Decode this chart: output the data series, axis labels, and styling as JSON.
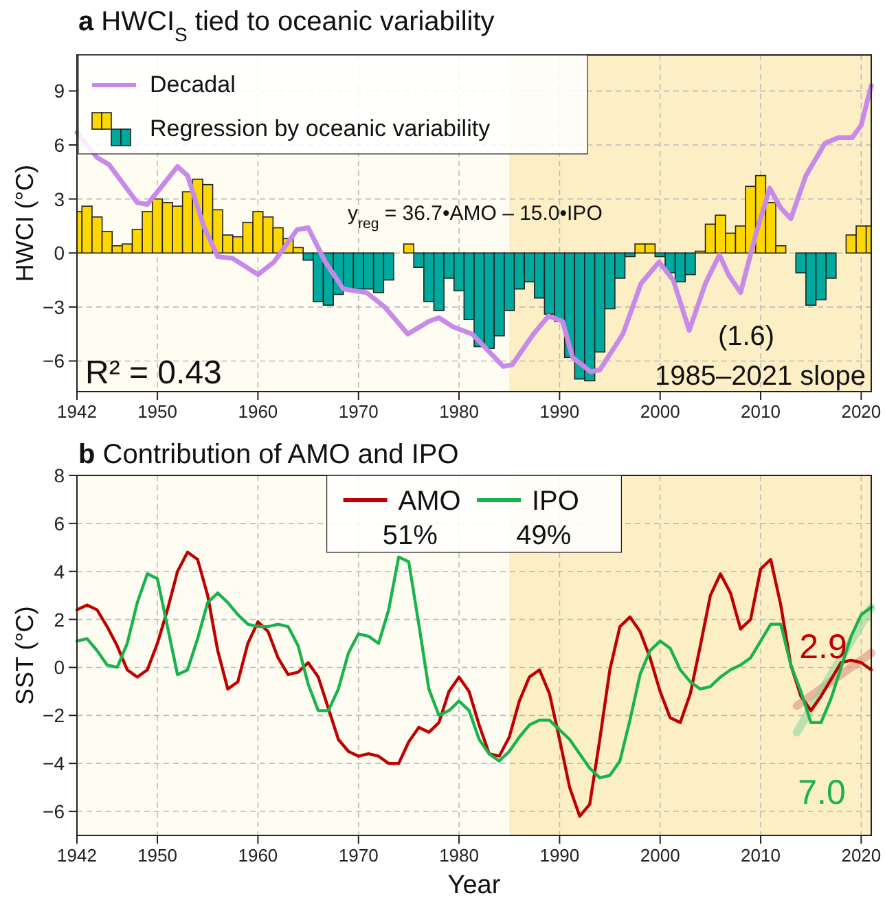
{
  "chart_data": [
    {
      "type": "bar",
      "title": "a HWCI$_{S}$ tied to oceanic variability",
      "ylabel": "HWCI (°C)",
      "x": [
        1942,
        1943,
        1944,
        1945,
        1946,
        1947,
        1948,
        1949,
        1950,
        1951,
        1952,
        1953,
        1954,
        1955,
        1956,
        1957,
        1958,
        1959,
        1960,
        1961,
        1962,
        1963,
        1964,
        1965,
        1966,
        1967,
        1968,
        1969,
        1970,
        1971,
        1972,
        1973,
        1974,
        1975,
        1976,
        1977,
        1978,
        1979,
        1980,
        1981,
        1982,
        1983,
        1984,
        1985,
        1986,
        1987,
        1988,
        1989,
        1990,
        1991,
        1992,
        1993,
        1994,
        1995,
        1996,
        1997,
        1998,
        1999,
        2000,
        2001,
        2002,
        2003,
        2004,
        2005,
        2006,
        2007,
        2008,
        2009,
        2010,
        2011,
        2012,
        2013,
        2014,
        2015,
        2016,
        2017,
        2018,
        2019,
        2020,
        2021
      ],
      "series": [
        {
          "type": "line",
          "name": "Decadal",
          "color": "#c88ae8",
          "x": [
            1942,
            1944,
            1945.2,
            1948,
            1949,
            1952,
            1953,
            1954.6,
            1956,
            1957.5,
            1960,
            1961.6,
            1963.9,
            1965,
            1966.7,
            1968.5,
            1970.8,
            1972.6,
            1974.9,
            1977,
            1978,
            1979.4,
            1981.3,
            1984.4,
            1985.3,
            1987.4,
            1988.9,
            1990.3,
            1991.3,
            1993.1,
            1994,
            1996.3,
            1998.1,
            1999.9,
            2001.3,
            2002.9,
            2004.5,
            2005.9,
            2006.8,
            2008,
            2009.5,
            2010.9,
            2012,
            2013,
            2014.5,
            2016.4,
            2017.7,
            2019.1,
            2020,
            2021
          ],
          "values": [
            6.7,
            5.3,
            4.9,
            2.8,
            2.7,
            4.8,
            4.3,
            1.5,
            -0.2,
            -0.3,
            -1.2,
            -0.5,
            1.3,
            1.4,
            -0.5,
            -2.0,
            -2.2,
            -3.0,
            -4.5,
            -3.8,
            -3.6,
            -4.1,
            -4.5,
            -6.3,
            -6.2,
            -4.5,
            -3.5,
            -3.8,
            -5.8,
            -6.6,
            -6.5,
            -4.5,
            -1.7,
            -0.5,
            -1.5,
            -4.3,
            -1.7,
            -0.1,
            -1.2,
            -2.2,
            1.0,
            3.6,
            2.5,
            1.9,
            4.3,
            6.1,
            6.4,
            6.4,
            7.1,
            9.3
          ]
        },
        {
          "type": "bar",
          "name": "Regression by oceanic variability",
          "values": [
            2.3,
            2.6,
            2.0,
            1.2,
            0.4,
            0.5,
            1.3,
            2.3,
            3.0,
            2.8,
            2.6,
            3.4,
            4.1,
            3.8,
            2.4,
            1.0,
            0.9,
            1.7,
            2.3,
            2.0,
            1.4,
            0.8,
            0.3,
            -0.4,
            -2.7,
            -2.9,
            -2.3,
            -2.0,
            -2.0,
            -2.0,
            -2.2,
            -1.5,
            0.0,
            0.5,
            -0.8,
            -2.7,
            -3.2,
            -1.4,
            -2.1,
            -3.7,
            -5.2,
            -5.3,
            -4.6,
            -3.2,
            -2.0,
            -1.6,
            -2.5,
            -3.4,
            -3.8,
            -5.8,
            -7.0,
            -7.1,
            -5.5,
            -3.1,
            -1.4,
            -0.2,
            0.5,
            0.5,
            -0.2,
            -1.1,
            -1.6,
            -1.2,
            0.1,
            1.6,
            2.1,
            1.1,
            1.5,
            3.7,
            4.3,
            2.8,
            0.4,
            0.0,
            -1.1,
            -2.9,
            -2.6,
            -1.4,
            0.0,
            1.0,
            1.5,
            1.5
          ],
          "colors": [
            "#ffd700",
            "#ffd700",
            "#ffd700",
            "#ffd700",
            "#ffd700",
            "#ffd700",
            "#ffd700",
            "#ffd700",
            "#ffd700",
            "#ffd700",
            "#ffd700",
            "#ffd700",
            "#ffd700",
            "#ffd700",
            "#ffd700",
            "#ffd700",
            "#ffd700",
            "#ffd700",
            "#ffd700",
            "#ffd700",
            "#ffd700",
            "#ffd700",
            "#ffd700",
            "#00a99d",
            "#00a99d",
            "#00a99d",
            "#00a99d",
            "#00a99d",
            "#00a99d",
            "#00a99d",
            "#00a99d",
            "#00a99d",
            "#00a99d",
            "#ffd700",
            "#00a99d",
            "#00a99d",
            "#00a99d",
            "#00a99d",
            "#00a99d",
            "#00a99d",
            "#00a99d",
            "#00a99d",
            "#00a99d",
            "#00a99d",
            "#00a99d",
            "#00a99d",
            "#00a99d",
            "#00a99d",
            "#00a99d",
            "#00a99d",
            "#00a99d",
            "#00a99d",
            "#00a99d",
            "#00a99d",
            "#00a99d",
            "#00a99d",
            "#ffd700",
            "#ffd700",
            "#00a99d",
            "#00a99d",
            "#00a99d",
            "#00a99d",
            "#ffd700",
            "#ffd700",
            "#ffd700",
            "#ffd700",
            "#ffd700",
            "#ffd700",
            "#ffd700",
            "#ffd700",
            "#ffd700",
            "#00a99d",
            "#00a99d",
            "#00a99d",
            "#00a99d",
            "#00a99d",
            "#00a99d",
            "#ffd700",
            "#ffd700",
            "#ffd700"
          ]
        }
      ],
      "xlim": [
        1942,
        2021
      ],
      "xticks": [
        1942,
        1950,
        1960,
        1970,
        1980,
        1990,
        2000,
        2010,
        2020
      ],
      "ylim": [
        -7.7,
        11
      ],
      "yticks": [
        -6,
        -3,
        0,
        3,
        6,
        9
      ],
      "grid": true,
      "legend": "top left",
      "bands": [
        {
          "axis": "x",
          "from": 1985,
          "to": 2021,
          "color": "#fcefc6"
        }
      ],
      "annotations": [
        "y$_{reg}$ = 36.7•AMO – 15.0•IPO",
        "R² = 0.43",
        "(1.6)",
        "1985–2021 slope"
      ]
    },
    {
      "type": "line",
      "title": "b Contribution of AMO and IPO",
      "xlabel": "Year",
      "ylabel": "SST (°C)",
      "x": [
        1942,
        1943,
        1944,
        1945,
        1946,
        1947,
        1948,
        1949,
        1950,
        1951,
        1952,
        1953,
        1954,
        1955,
        1956,
        1957,
        1958,
        1959,
        1960,
        1961,
        1962,
        1963,
        1964,
        1965,
        1966,
        1967,
        1968,
        1969,
        1970,
        1971,
        1972,
        1973,
        1974,
        1975,
        1976,
        1977,
        1978,
        1979,
        1980,
        1981,
        1982,
        1983,
        1984,
        1985,
        1986,
        1987,
        1988,
        1989,
        1990,
        1991,
        1992,
        1993,
        1994,
        1995,
        1996,
        1997,
        1998,
        1999,
        2000,
        2001,
        2002,
        2003,
        2004,
        2005,
        2006,
        2007,
        2008,
        2009,
        2010,
        2011,
        2012,
        2013,
        2014,
        2015,
        2016,
        2017,
        2018,
        2019,
        2020,
        2021
      ],
      "series": [
        {
          "name": "AMO",
          "color": "#c00000",
          "values": [
            2.4,
            2.6,
            2.4,
            1.7,
            0.9,
            -0.1,
            -0.4,
            -0.1,
            1.0,
            2.4,
            4.0,
            4.8,
            4.5,
            3.0,
            0.7,
            -0.9,
            -0.6,
            1.0,
            1.9,
            1.5,
            0.4,
            -0.3,
            -0.2,
            0.2,
            -0.4,
            -1.7,
            -3.0,
            -3.5,
            -3.7,
            -3.6,
            -3.7,
            -4.0,
            -4.0,
            -3.1,
            -2.5,
            -2.7,
            -2.3,
            -1.0,
            -0.4,
            -1.0,
            -2.4,
            -3.6,
            -3.7,
            -2.9,
            -1.4,
            -0.4,
            -0.1,
            -1.1,
            -3.0,
            -5.0,
            -6.2,
            -5.7,
            -3.0,
            -0.1,
            1.7,
            2.1,
            1.5,
            0.4,
            -1.0,
            -2.1,
            -2.3,
            -1.1,
            0.9,
            3.0,
            3.9,
            3.1,
            1.6,
            2.0,
            4.1,
            4.5,
            2.6,
            0.1,
            -1.2,
            -1.8,
            -1.2,
            -0.5,
            0.2,
            0.3,
            0.2,
            -0.1
          ]
        },
        {
          "name": "IPO",
          "color": "#19b34e",
          "values": [
            1.1,
            1.2,
            0.7,
            0.1,
            0.0,
            1.0,
            2.7,
            3.9,
            3.7,
            1.7,
            -0.3,
            -0.1,
            1.2,
            2.7,
            3.1,
            2.7,
            2.2,
            1.8,
            1.7,
            1.7,
            1.8,
            1.7,
            0.9,
            -0.7,
            -1.8,
            -1.8,
            -0.9,
            0.6,
            1.4,
            1.3,
            1.0,
            2.4,
            4.6,
            4.4,
            1.8,
            -0.9,
            -2.0,
            -1.8,
            -1.4,
            -1.8,
            -3.0,
            -3.6,
            -3.9,
            -3.5,
            -2.9,
            -2.4,
            -2.2,
            -2.2,
            -2.6,
            -3.0,
            -3.6,
            -4.2,
            -4.6,
            -4.5,
            -3.9,
            -2.2,
            -0.3,
            0.7,
            1.1,
            0.8,
            -0.1,
            -0.6,
            -0.9,
            -0.8,
            -0.4,
            -0.1,
            0.1,
            0.4,
            1.1,
            1.8,
            1.8,
            0.1,
            -1.0,
            -2.3,
            -2.3,
            -1.3,
            0.0,
            1.3,
            2.2,
            2.5
          ]
        },
        {
          "color": "#d98a7a",
          "x": [
            2013.6,
            2021
          ],
          "values": [
            -1.6,
            0.6
          ]
        },
        {
          "color": "#86d39a",
          "x": [
            2013.6,
            2021
          ],
          "values": [
            -2.7,
            2.5
          ]
        }
      ],
      "xlim": [
        1942,
        2021
      ],
      "xticks": [
        1942,
        1950,
        1960,
        1970,
        1980,
        1990,
        2000,
        2010,
        2020
      ],
      "ylim": [
        -7,
        8
      ],
      "yticks": [
        -6,
        -4,
        -2,
        0,
        2,
        4,
        6,
        8
      ],
      "grid": true,
      "legend": "top",
      "bands": [
        {
          "axis": "x",
          "from": 1985,
          "to": 2021,
          "color": "#fcefc6"
        }
      ],
      "annotations": [
        "51%",
        "49%",
        "2.9",
        "7.0"
      ]
    }
  ]
}
